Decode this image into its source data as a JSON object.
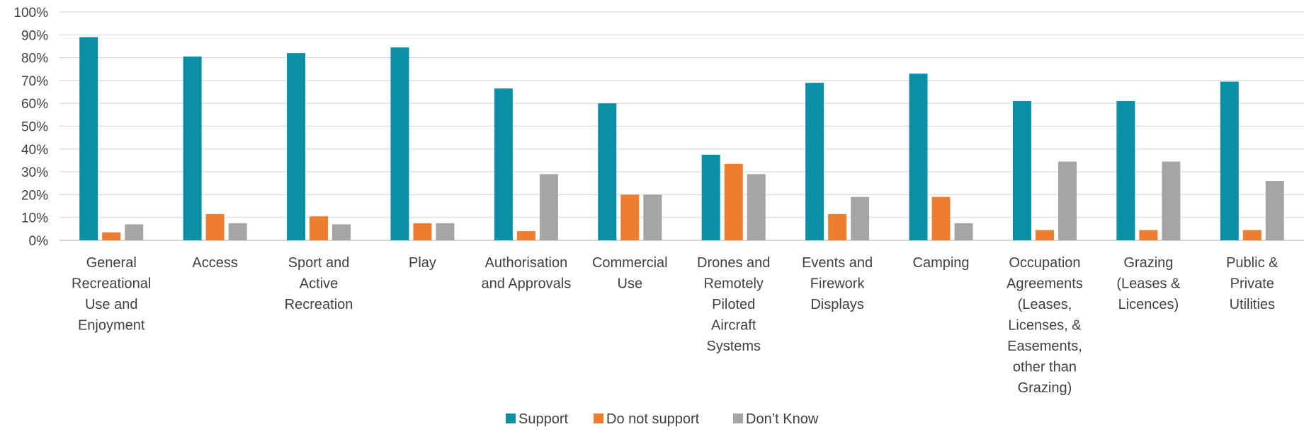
{
  "chart_data": {
    "type": "bar",
    "categories": [
      [
        "General",
        "Recreational",
        "Use and",
        "Enjoyment"
      ],
      [
        "Access"
      ],
      [
        "Sport and",
        "Active",
        "Recreation"
      ],
      [
        "Play"
      ],
      [
        "Authorisation",
        "and Approvals"
      ],
      [
        "Commercial",
        "Use"
      ],
      [
        "Drones and",
        "Remotely",
        "Piloted",
        "Aircraft",
        "Systems"
      ],
      [
        "Events and",
        "Firework",
        "Displays"
      ],
      [
        "Camping"
      ],
      [
        "Occupation",
        "Agreements",
        "(Leases,",
        "Licenses, &",
        "Easements,",
        "other than",
        "Grazing)"
      ],
      [
        "Grazing",
        "(Leases &",
        "Licences)"
      ],
      [
        "Public &",
        "Private",
        "Utilities"
      ]
    ],
    "series": [
      {
        "name": "Support",
        "color": "#0B8FA5",
        "values": [
          89,
          80.5,
          82,
          84.5,
          66.5,
          60,
          37.5,
          69,
          73,
          61,
          61,
          69.5
        ]
      },
      {
        "name": "Do not support",
        "color": "#ED7D31",
        "values": [
          3.5,
          11.5,
          10.5,
          7.5,
          4,
          20,
          33.5,
          11.5,
          19,
          4.5,
          4.5,
          4.5
        ]
      },
      {
        "name": "Don’t Know",
        "color": "#A5A5A5",
        "values": [
          7,
          7.5,
          7,
          7.5,
          29,
          20,
          29,
          19,
          7.5,
          34.5,
          34.5,
          26
        ]
      }
    ],
    "y_ticks": [
      "0%",
      "10%",
      "20%",
      "30%",
      "40%",
      "50%",
      "60%",
      "70%",
      "80%",
      "90%",
      "100%"
    ],
    "ylim": [
      0,
      100
    ],
    "grid": true,
    "legend_position": "bottom"
  }
}
